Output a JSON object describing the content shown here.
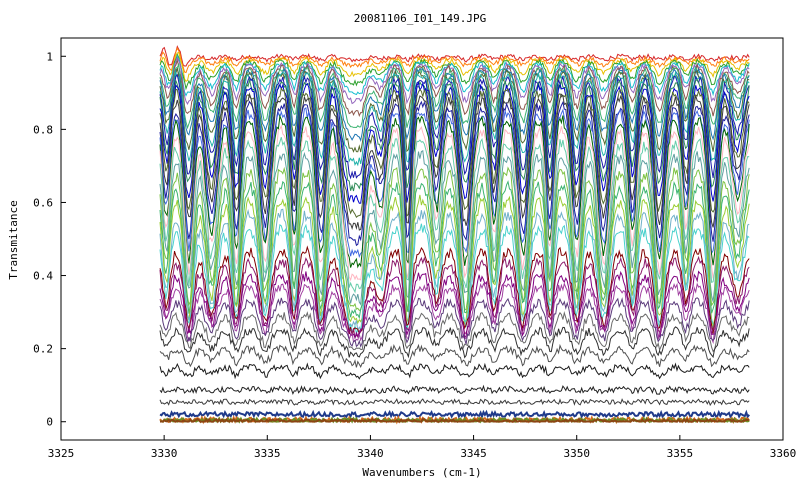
{
  "chart_data": {
    "type": "line",
    "title": "20081106_I01_149.JPG",
    "xlabel": "Wavenumbers (cm-1)",
    "ylabel": "Transmitance",
    "xlim": [
      3325,
      3360
    ],
    "ylim": [
      -0.05,
      1.05
    ],
    "data_x_range": [
      3329.8,
      3358.4
    ],
    "x_ticks": [
      "3325",
      "3330",
      "3335",
      "3340",
      "3345",
      "3350",
      "3355",
      "3360"
    ],
    "y_ticks": [
      "0",
      "0.2",
      "0.4",
      "0.6",
      "0.8",
      "1"
    ],
    "x_tick_values": [
      3325,
      3330,
      3335,
      3340,
      3345,
      3350,
      3355,
      3360
    ],
    "y_tick_values": [
      0,
      0.2,
      0.4,
      0.6,
      0.8,
      1
    ],
    "grid": false,
    "legend": "none",
    "absorption_lines_cm1": [
      3330.1,
      3331.2,
      3332.3,
      3333.5,
      3334.9,
      3336.3,
      3337.6,
      3338.8,
      3339.3,
      3340.5,
      3341.8,
      3343.2,
      3344.6,
      3346.0,
      3347.4,
      3348.7,
      3350.0,
      3351.3,
      3352.7,
      3354.0,
      3355.3,
      3356.6,
      3357.8
    ],
    "series": [
      {
        "baseline": 1.0,
        "depth": 0.01,
        "color": "#d62728"
      },
      {
        "baseline": 0.995,
        "depth": 0.02,
        "color": "#ff7f0e"
      },
      {
        "baseline": 0.99,
        "depth": 0.04,
        "color": "#e8c000"
      },
      {
        "baseline": 0.985,
        "depth": 0.06,
        "color": "#2ca02c"
      },
      {
        "baseline": 0.98,
        "depth": 0.08,
        "color": "#17becf"
      },
      {
        "baseline": 0.975,
        "depth": 0.1,
        "color": "#9467bd"
      },
      {
        "baseline": 0.97,
        "depth": 0.13,
        "color": "#8c564b"
      },
      {
        "baseline": 0.965,
        "depth": 0.16,
        "color": "#3cb371"
      },
      {
        "baseline": 0.96,
        "depth": 0.19,
        "color": "#1f77b4"
      },
      {
        "baseline": 0.955,
        "depth": 0.22,
        "color": "#556b2f"
      },
      {
        "baseline": 0.95,
        "depth": 0.25,
        "color": "#20b2aa"
      },
      {
        "baseline": 0.94,
        "depth": 0.28,
        "color": "#1a1aaa"
      },
      {
        "baseline": 0.93,
        "depth": 0.31,
        "color": "#2e8b57"
      },
      {
        "baseline": 0.92,
        "depth": 0.34,
        "color": "#0000cd"
      },
      {
        "baseline": 0.905,
        "depth": 0.37,
        "color": "#556b2f"
      },
      {
        "baseline": 0.89,
        "depth": 0.4,
        "color": "#3a3a3a"
      },
      {
        "baseline": 0.87,
        "depth": 0.43,
        "color": "#1e1e9e"
      },
      {
        "baseline": 0.85,
        "depth": 0.46,
        "color": "#4169e1"
      },
      {
        "baseline": 0.83,
        "depth": 0.48,
        "color": "#006400"
      },
      {
        "baseline": 0.8,
        "depth": 0.5,
        "color": "#ffb6c1"
      },
      {
        "baseline": 0.77,
        "depth": 0.52,
        "color": "#66cdaa"
      },
      {
        "baseline": 0.73,
        "depth": 0.54,
        "color": "#5f9ea0"
      },
      {
        "baseline": 0.69,
        "depth": 0.55,
        "color": "#7cc242"
      },
      {
        "baseline": 0.65,
        "depth": 0.55,
        "color": "#3cb371"
      },
      {
        "baseline": 0.61,
        "depth": 0.55,
        "color": "#9acd32"
      },
      {
        "baseline": 0.57,
        "depth": 0.54,
        "color": "#6fb0c9"
      },
      {
        "baseline": 0.53,
        "depth": 0.52,
        "color": "#48d1cc"
      },
      {
        "baseline": 0.47,
        "depth": 0.47,
        "color": "#800000"
      },
      {
        "baseline": 0.44,
        "depth": 0.45,
        "color": "#8b1a6b"
      },
      {
        "baseline": 0.4,
        "depth": 0.41,
        "color": "#800080"
      },
      {
        "baseline": 0.37,
        "depth": 0.38,
        "color": "#a040a0"
      },
      {
        "baseline": 0.33,
        "depth": 0.34,
        "color": "#5a3a7a"
      },
      {
        "baseline": 0.29,
        "depth": 0.3,
        "color": "#6a6a6a"
      },
      {
        "baseline": 0.25,
        "depth": 0.26,
        "color": "#2f2f2f"
      },
      {
        "baseline": 0.2,
        "depth": 0.21,
        "color": "#505050"
      },
      {
        "baseline": 0.15,
        "depth": 0.16,
        "color": "#1a1a1a"
      },
      {
        "baseline": 0.09,
        "depth": 0.09,
        "color": "#222222"
      },
      {
        "baseline": 0.055,
        "depth": 0.05,
        "color": "#3a3a3a"
      },
      {
        "baseline": 0.02,
        "depth": 0.008,
        "color": "#1f3a8a"
      },
      {
        "baseline": 0.005,
        "depth": 0.002,
        "color": "#d2691e"
      },
      {
        "baseline": 0.003,
        "depth": 0.0,
        "color": "#6b8e23"
      },
      {
        "baseline": 0.001,
        "depth": 0.0,
        "color": "#8b4513"
      }
    ]
  }
}
